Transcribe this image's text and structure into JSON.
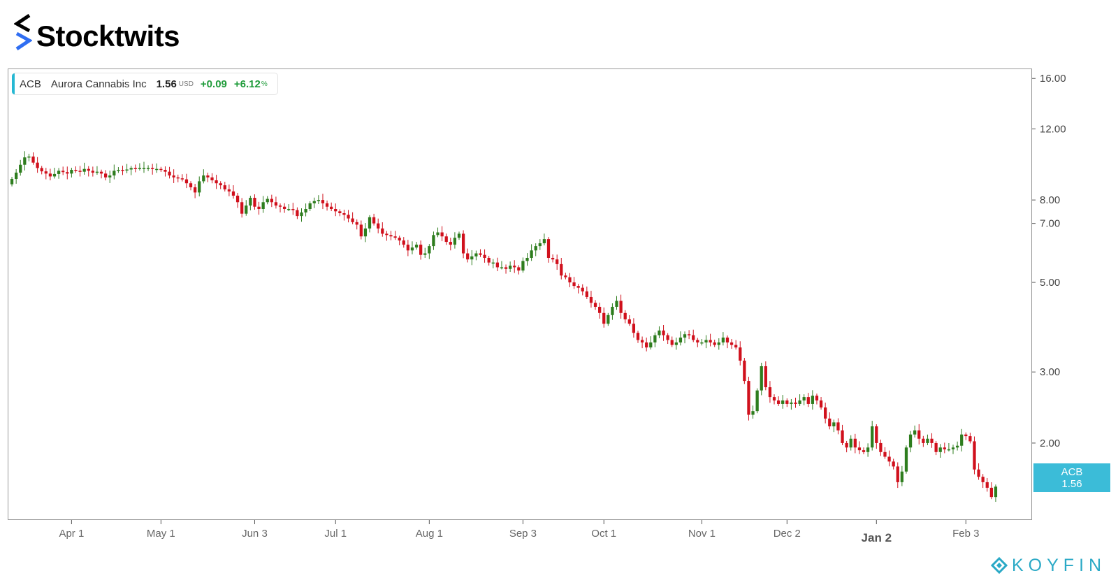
{
  "brand": {
    "name": "Stocktwits",
    "icon": "stocktwits-chevron-icon"
  },
  "watermark": {
    "name": "KOYFIN",
    "icon": "koyfin-diamond-icon"
  },
  "ticker": {
    "symbol": "ACB",
    "company": "Aurora Cannabis Inc",
    "price": "1.56",
    "currency": "USD",
    "change": "+0.09",
    "change_pct": "+6.12",
    "pct_sign": "%",
    "accent_color": "#26b8d3",
    "up_color": "#1f9b3a"
  },
  "price_badge": {
    "symbol": "ACB",
    "price": "1.56",
    "color": "#3bbcd8"
  },
  "chart_data": {
    "type": "candlestick",
    "scale": "log",
    "ylim": [
      1.3,
      16.8
    ],
    "y_ticks": [
      "16.00",
      "12.00",
      "8.00",
      "7.00",
      "5.00",
      "3.00",
      "2.00"
    ],
    "y_tick_values": [
      16,
      12,
      8,
      7,
      5,
      3,
      2
    ],
    "x_ticks": [
      "Apr 1",
      "May 1",
      "Jun 3",
      "Jul 1",
      "Aug 1",
      "Sep 3",
      "Oct 1",
      "Nov 1",
      "Dec 2",
      "Jan 2",
      "Feb 3"
    ],
    "x_tick_index": [
      14,
      35,
      57,
      76,
      98,
      120,
      139,
      162,
      182,
      203,
      224
    ],
    "bold_tick": "Jan 2",
    "up_color": "#2e7d1e",
    "down_color": "#d0101c",
    "grid": false,
    "closes": [
      9.02,
      9.35,
      9.78,
      10.2,
      10.25,
      9.9,
      9.6,
      9.42,
      9.3,
      9.15,
      9.28,
      9.45,
      9.38,
      9.3,
      9.5,
      9.45,
      9.4,
      9.55,
      9.45,
      9.35,
      9.4,
      9.3,
      9.1,
      9.2,
      9.45,
      9.5,
      9.48,
      9.52,
      9.6,
      9.58,
      9.6,
      9.6,
      9.6,
      9.55,
      9.55,
      9.5,
      9.4,
      9.2,
      9.1,
      9.05,
      9.0,
      8.8,
      8.6,
      8.35,
      8.9,
      9.2,
      9.1,
      8.95,
      8.8,
      8.7,
      8.5,
      8.4,
      8.2,
      7.9,
      7.4,
      7.75,
      8.1,
      7.7,
      7.6,
      7.9,
      8.05,
      7.9,
      7.75,
      7.7,
      7.6,
      7.6,
      7.55,
      7.3,
      7.45,
      7.6,
      7.85,
      7.95,
      8.0,
      7.85,
      7.7,
      7.6,
      7.5,
      7.42,
      7.35,
      7.2,
      7.05,
      6.95,
      6.5,
      6.8,
      7.25,
      7.0,
      6.8,
      6.6,
      6.55,
      6.5,
      6.45,
      6.35,
      6.2,
      6.0,
      6.1,
      6.2,
      5.85,
      5.9,
      6.15,
      6.55,
      6.65,
      6.5,
      6.3,
      6.2,
      6.45,
      6.6,
      5.9,
      5.7,
      5.8,
      5.9,
      5.85,
      5.75,
      5.6,
      5.6,
      5.45,
      5.45,
      5.4,
      5.5,
      5.45,
      5.35,
      5.65,
      5.75,
      6.0,
      6.15,
      6.25,
      6.4,
      5.75,
      5.7,
      5.55,
      5.2,
      5.15,
      5.0,
      4.9,
      4.85,
      4.75,
      4.6,
      4.45,
      4.35,
      4.2,
      3.95,
      4.15,
      4.35,
      4.5,
      4.2,
      4.05,
      3.95,
      3.75,
      3.6,
      3.55,
      3.45,
      3.55,
      3.7,
      3.8,
      3.7,
      3.6,
      3.5,
      3.55,
      3.65,
      3.72,
      3.7,
      3.6,
      3.55,
      3.55,
      3.6,
      3.55,
      3.5,
      3.55,
      3.65,
      3.55,
      3.5,
      3.45,
      3.2,
      2.85,
      2.35,
      2.4,
      2.7,
      3.1,
      2.75,
      2.6,
      2.55,
      2.5,
      2.55,
      2.5,
      2.52,
      2.5,
      2.55,
      2.6,
      2.5,
      2.62,
      2.55,
      2.45,
      2.3,
      2.2,
      2.25,
      2.15,
      2.0,
      1.95,
      2.05,
      1.95,
      1.92,
      1.9,
      1.95,
      2.2,
      2.0,
      1.9,
      1.85,
      1.8,
      1.75,
      1.6,
      1.7,
      1.95,
      2.1,
      2.15,
      2.05,
      2.0,
      2.05,
      2.0,
      1.9,
      1.95,
      1.93,
      1.93,
      1.95,
      1.97,
      2.1,
      2.08,
      2.02,
      1.72,
      1.65,
      1.6,
      1.55,
      1.47,
      1.56
    ],
    "ohlc_note": "Daily candlestick price chart; closes estimated from the plotted candles"
  }
}
